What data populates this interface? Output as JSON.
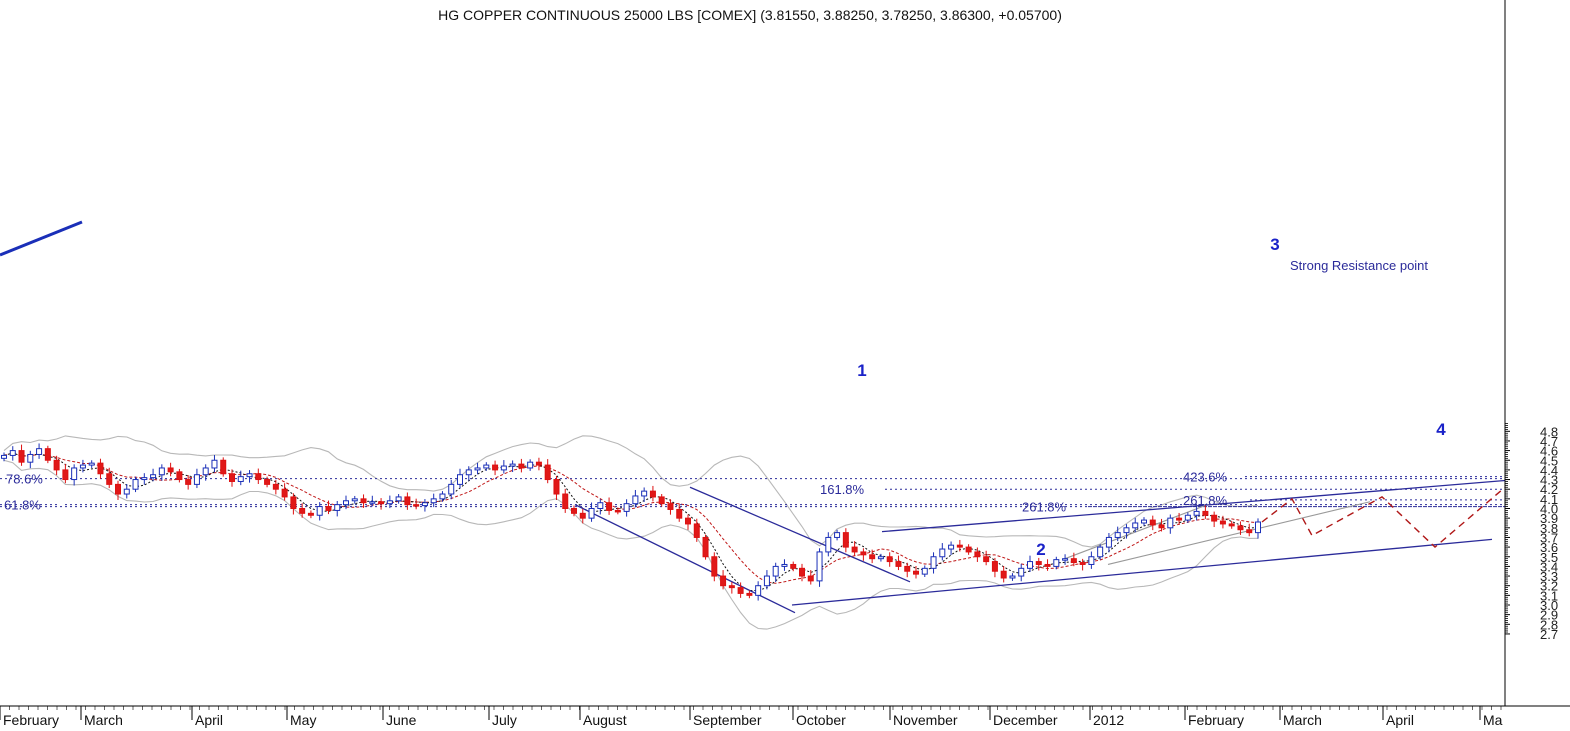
{
  "chart_data": {
    "type": "candlestick",
    "title": "HG COPPER CONTINUOUS 25000 LBS [COMEX] (3.81550, 3.88250, 3.78250, 3.86300, +0.05700)",
    "ylim": [
      2.65,
      4.85
    ],
    "y_ticks": [
      "2.7",
      "2.8",
      "2.9",
      "3.0",
      "3.1",
      "3.2",
      "3.3",
      "3.4",
      "3.5",
      "3.6",
      "3.7",
      "3.8",
      "3.9",
      "4.0",
      "4.1",
      "4.2",
      "4.3",
      "4.4",
      "4.5",
      "4.6",
      "4.7",
      "4.8"
    ],
    "x_ticks": [
      "February",
      "March",
      "April",
      "May",
      "June",
      "July",
      "August",
      "September",
      "October",
      "November",
      "December",
      "2012",
      "February",
      "March",
      "April",
      "Ma"
    ],
    "fib_levels": [
      {
        "label": "78.6%",
        "value": 4.31
      },
      {
        "label": "61.8%",
        "value": 4.04
      },
      {
        "label": "423.6%",
        "value": 4.33
      },
      {
        "label": "161.8%",
        "value": 4.2
      },
      {
        "label": "261.8%",
        "value": 4.09
      },
      {
        "label": "261.8%",
        "value": 4.02
      }
    ],
    "annotations": [
      {
        "label": "1",
        "x": "Oct 2011",
        "y": 3.76
      },
      {
        "label": "2",
        "x": "Dec 2011",
        "y": 3.24
      },
      {
        "label": "3",
        "x": "Feb 2012",
        "y": 4.1
      },
      {
        "label": "4",
        "x": "Apr 2012",
        "y": 3.58
      },
      {
        "label": "Strong Resistance point",
        "x": "Feb 2012",
        "y": 4.11
      }
    ],
    "closes": [
      4.55,
      4.6,
      4.48,
      4.56,
      4.62,
      4.5,
      4.4,
      4.3,
      4.42,
      4.45,
      4.47,
      4.36,
      4.25,
      4.15,
      4.2,
      4.3,
      4.32,
      4.35,
      4.42,
      4.38,
      4.3,
      4.25,
      4.35,
      4.42,
      4.5,
      4.36,
      4.28,
      4.33,
      4.36,
      4.3,
      4.25,
      4.2,
      4.12,
      4.0,
      3.95,
      3.93,
      4.02,
      3.98,
      4.04,
      4.08,
      4.1,
      4.06,
      4.07,
      4.05,
      4.08,
      4.12,
      4.04,
      4.03,
      4.06,
      4.1,
      4.15,
      4.25,
      4.35,
      4.4,
      4.42,
      4.45,
      4.4,
      4.44,
      4.46,
      4.42,
      4.48,
      4.45,
      4.3,
      4.15,
      4.0,
      3.95,
      3.9,
      4.0,
      4.06,
      3.98,
      3.97,
      4.05,
      4.13,
      4.18,
      4.12,
      4.05,
      3.99,
      3.9,
      3.84,
      3.7,
      3.5,
      3.3,
      3.2,
      3.18,
      3.12,
      3.1,
      3.2,
      3.3,
      3.4,
      3.42,
      3.38,
      3.3,
      3.25,
      3.55,
      3.7,
      3.75,
      3.6,
      3.55,
      3.52,
      3.48,
      3.5,
      3.45,
      3.4,
      3.35,
      3.32,
      3.38,
      3.5,
      3.58,
      3.62,
      3.6,
      3.55,
      3.5,
      3.45,
      3.35,
      3.28,
      3.3,
      3.38,
      3.45,
      3.42,
      3.4,
      3.47,
      3.48,
      3.44,
      3.42,
      3.5,
      3.6,
      3.7,
      3.75,
      3.8,
      3.85,
      3.88,
      3.83,
      3.8,
      3.9,
      3.88,
      3.93,
      3.97,
      3.93,
      3.87,
      3.84,
      3.82,
      3.78,
      3.75,
      3.86
    ],
    "forecast": [
      3.86,
      4.1,
      3.72,
      4.12,
      3.6,
      4.22
    ]
  }
}
